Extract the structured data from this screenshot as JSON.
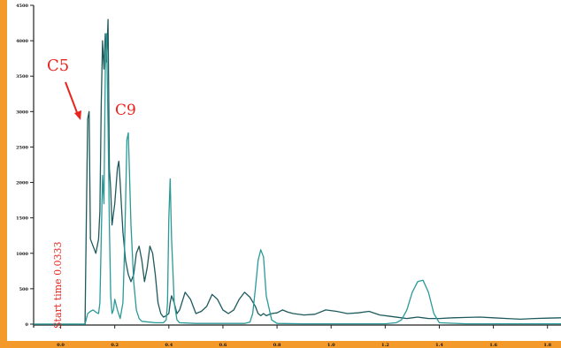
{
  "chart_data": {
    "type": "line",
    "title": "",
    "xlabel": "",
    "ylabel": "",
    "xlim": [
      -0.1,
      1.85
    ],
    "ylim": [
      -50,
      4500
    ],
    "x_ticks": [
      0.0,
      0.2,
      0.4,
      0.6,
      0.8,
      1.0,
      1.2,
      1.4,
      1.6,
      1.8
    ],
    "x_tick_labels": [
      "0.0",
      "0.2",
      "0.4",
      "0.6",
      "0.8",
      "1.0",
      "1.2",
      "1.4",
      "1.6",
      "1.8"
    ],
    "y_ticks": [
      0,
      500,
      1000,
      1500,
      2000,
      2500,
      3000,
      3500,
      4000,
      4500
    ],
    "y_tick_labels": [
      "0",
      "500",
      "1000",
      "1500",
      "2000",
      "2500",
      "3000",
      "3500",
      "4000",
      "4500"
    ],
    "colors": {
      "series_a": "#1e5a5c",
      "series_b": "#2a9a98",
      "annotation": "#e8241c"
    },
    "series": [
      {
        "x": [
          -0.1,
          0.0,
          0.05,
          0.09,
          0.095,
          0.1,
          0.105,
          0.11,
          0.12,
          0.13,
          0.14,
          0.145,
          0.15,
          0.155,
          0.16,
          0.165,
          0.17,
          0.175,
          0.18,
          0.185,
          0.19,
          0.2,
          0.21,
          0.215,
          0.22,
          0.23,
          0.24,
          0.25,
          0.26,
          0.27,
          0.28,
          0.29,
          0.3,
          0.31,
          0.32,
          0.33,
          0.34,
          0.35,
          0.36,
          0.37,
          0.38,
          0.39,
          0.4,
          0.405,
          0.41,
          0.42,
          0.43,
          0.44,
          0.46,
          0.48,
          0.5,
          0.52,
          0.54,
          0.56,
          0.58,
          0.6,
          0.62,
          0.64,
          0.66,
          0.68,
          0.7,
          0.72,
          0.73,
          0.74,
          0.75,
          0.76,
          0.78,
          0.8,
          0.82,
          0.84,
          0.86,
          0.9,
          0.94,
          0.98,
          1.02,
          1.06,
          1.1,
          1.14,
          1.18,
          1.22,
          1.26,
          1.28,
          1.3,
          1.32,
          1.34,
          1.36,
          1.4,
          1.45,
          1.5,
          1.55,
          1.6,
          1.65,
          1.7,
          1.75,
          1.8,
          1.85
        ],
        "y": [
          0,
          0,
          0,
          0,
          1500,
          2900,
          3000,
          1200,
          1100,
          1000,
          1200,
          1600,
          3100,
          4000,
          3600,
          4100,
          3700,
          4300,
          2200,
          1900,
          1400,
          1700,
          2200,
          2300,
          2000,
          1300,
          900,
          700,
          600,
          700,
          1000,
          1100,
          900,
          600,
          800,
          1100,
          1000,
          700,
          300,
          150,
          100,
          120,
          150,
          300,
          400,
          300,
          150,
          200,
          450,
          350,
          150,
          180,
          250,
          420,
          350,
          200,
          150,
          200,
          350,
          450,
          380,
          250,
          150,
          120,
          150,
          120,
          150,
          160,
          200,
          170,
          150,
          130,
          140,
          200,
          180,
          150,
          160,
          180,
          130,
          110,
          90,
          80,
          90,
          100,
          90,
          80,
          80,
          90,
          95,
          100,
          90,
          80,
          70,
          80,
          85,
          90
        ]
      },
      {
        "x": [
          -0.1,
          0.0,
          0.09,
          0.1,
          0.11,
          0.12,
          0.13,
          0.14,
          0.145,
          0.15,
          0.155,
          0.16,
          0.165,
          0.17,
          0.175,
          0.18,
          0.185,
          0.19,
          0.195,
          0.2,
          0.21,
          0.22,
          0.23,
          0.235,
          0.24,
          0.245,
          0.25,
          0.26,
          0.27,
          0.28,
          0.29,
          0.3,
          0.35,
          0.38,
          0.39,
          0.395,
          0.4,
          0.405,
          0.41,
          0.42,
          0.43,
          0.44,
          0.5,
          0.6,
          0.68,
          0.7,
          0.71,
          0.72,
          0.73,
          0.74,
          0.75,
          0.76,
          0.78,
          0.8,
          0.9,
          1.0,
          1.1,
          1.2,
          1.24,
          1.26,
          1.28,
          1.3,
          1.32,
          1.34,
          1.36,
          1.38,
          1.4,
          1.5,
          1.6,
          1.7,
          1.8,
          1.85
        ],
        "y": [
          0,
          0,
          0,
          150,
          180,
          200,
          170,
          150,
          300,
          1200,
          2100,
          1700,
          3600,
          4100,
          2800,
          1400,
          400,
          150,
          200,
          350,
          200,
          80,
          300,
          900,
          1700,
          2600,
          2700,
          1400,
          600,
          200,
          80,
          40,
          20,
          20,
          60,
          300,
          1500,
          2050,
          1200,
          300,
          60,
          20,
          10,
          10,
          10,
          30,
          150,
          500,
          900,
          1050,
          950,
          400,
          60,
          10,
          5,
          5,
          5,
          5,
          20,
          60,
          200,
          450,
          600,
          620,
          450,
          150,
          20,
          5,
          5,
          5,
          5,
          5
        ]
      }
    ],
    "annotations": [
      {
        "text": "C5",
        "x": 0.09,
        "y": 3000
      },
      {
        "text": "C9",
        "x": 0.25,
        "y": 3000
      },
      {
        "text": "Start time 0.0333"
      }
    ]
  }
}
